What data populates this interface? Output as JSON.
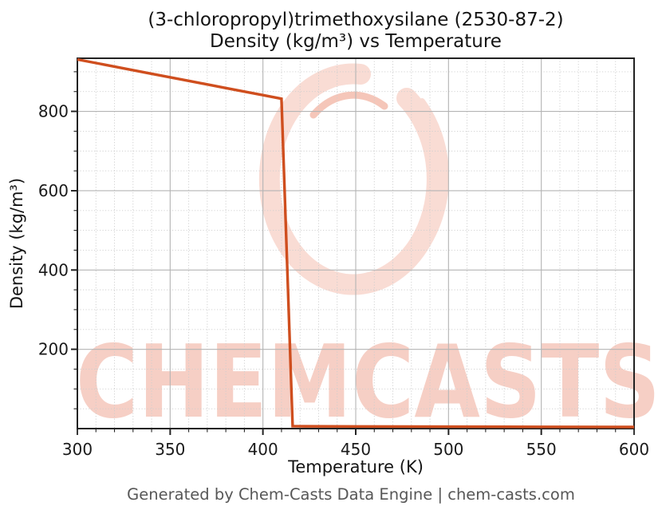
{
  "figure": {
    "title_line1": "(3-chloropropyl)trimethoxysilane (2530-87-2)",
    "title_line2": "Density (kg/m³) vs Temperature",
    "footer": "Generated by Chem-Casts Data Engine | chem-casts.com"
  },
  "watermark": {
    "text": "CHEMCASTS",
    "logo": "c-swirl-logo",
    "text_color": "#f6cfc5",
    "logo_color": "#f9dcd4",
    "logo_accent_color": "#f5c6b9"
  },
  "chart_data": {
    "type": "line",
    "title": "(3-chloropropyl)trimethoxysilane (2530-87-2) — Density (kg/m³) vs Temperature",
    "xlabel": "Temperature (K)",
    "ylabel": "Density (kg/m³)",
    "xlim": [
      300,
      600
    ],
    "ylim": [
      0,
      934
    ],
    "x_major_ticks": [
      300,
      350,
      400,
      450,
      500,
      550,
      600
    ],
    "x_minor_step": 10,
    "y_major_ticks": [
      200,
      400,
      600,
      800
    ],
    "y_minor_step": 50,
    "grid": true,
    "legend": "none",
    "line_color": "#cf4e1e",
    "line_width": 3.4,
    "series": [
      {
        "name": "Density (kg/m³)",
        "points": [
          [
            300,
            931
          ],
          [
            320,
            913
          ],
          [
            340,
            895
          ],
          [
            360,
            877
          ],
          [
            380,
            859
          ],
          [
            400,
            841
          ],
          [
            410,
            832
          ],
          [
            413,
            420
          ],
          [
            416,
            6
          ],
          [
            420,
            5.9
          ],
          [
            450,
            5.4
          ],
          [
            500,
            4.8
          ],
          [
            550,
            4.4
          ],
          [
            600,
            4.0
          ]
        ]
      }
    ],
    "colors": {
      "grid_major": "#b4b4b4",
      "grid_minor": "#cdcdcd",
      "spine": "#222222",
      "tick": "#222222"
    }
  }
}
